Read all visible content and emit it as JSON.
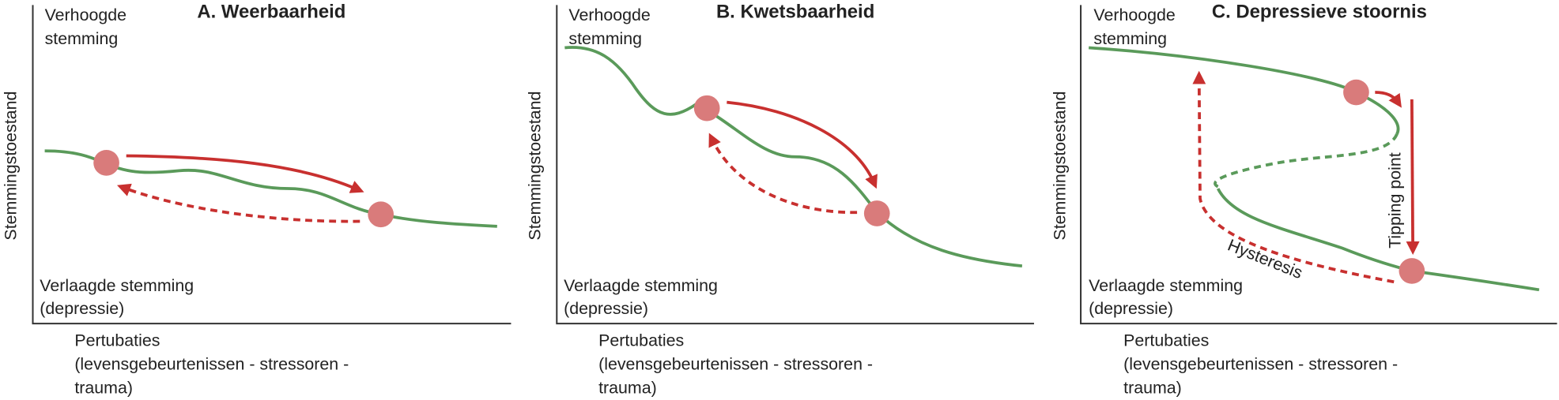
{
  "panels": [
    {
      "title": "A. Weerbaarheid",
      "y_label": "Stemmingstoestand",
      "top_label": [
        "Verhoogde",
        "stemming"
      ],
      "bottom_label": [
        "Verlaagde stemming",
        "(depressie)"
      ],
      "x_label": [
        "Pertubaties",
        "(levensgebeurtenissen - stressoren -",
        "trauma)"
      ]
    },
    {
      "title": "B. Kwetsbaarheid",
      "y_label": "Stemmingstoestand",
      "top_label": [
        "Verhoogde",
        "stemming"
      ],
      "bottom_label": [
        "Verlaagde stemming",
        "(depressie)"
      ],
      "x_label": [
        "Pertubaties",
        "(levensgebeurtenissen - stressoren -",
        "trauma)"
      ]
    },
    {
      "title": "C. Depressieve stoornis",
      "y_label": "Stemmingstoestand",
      "top_label": [
        "Verhoogde",
        "stemming"
      ],
      "bottom_label": [
        "Verlaagde stemming",
        "(depressie)"
      ],
      "x_label": [
        "Pertubaties",
        "(levensgebeurtenissen - stressoren -",
        "trauma)"
      ],
      "annotations": [
        "Tipping point",
        "Hysteresis"
      ]
    }
  ]
}
